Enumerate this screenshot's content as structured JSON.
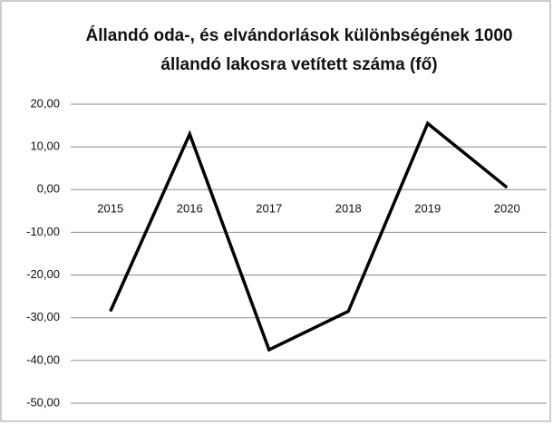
{
  "chart_data": {
    "type": "line",
    "title": [
      "Állandó oda-, és elvándorlások különbségének 1000",
      "állandó lakosra vetített száma (fő)"
    ],
    "categories": [
      "2015",
      "2016",
      "2017",
      "2018",
      "2019",
      "2020"
    ],
    "series": [
      {
        "name": null,
        "color": "#000000",
        "values": [
          -28.5,
          13,
          -37.5,
          -28.5,
          15.5,
          0.5
        ]
      }
    ],
    "ylim": [
      -50,
      20
    ],
    "yticks": [
      {
        "value": -50,
        "label": "-50,00"
      },
      {
        "value": -40,
        "label": "-40,00"
      },
      {
        "value": -30,
        "label": "-30,00"
      },
      {
        "value": -20,
        "label": "-20,00"
      },
      {
        "value": -10,
        "label": "-10,00"
      },
      {
        "value": 0,
        "label": "0,00"
      },
      {
        "value": 10,
        "label": "10,00"
      },
      {
        "value": 20,
        "label": "20,00"
      }
    ],
    "grid": true
  }
}
